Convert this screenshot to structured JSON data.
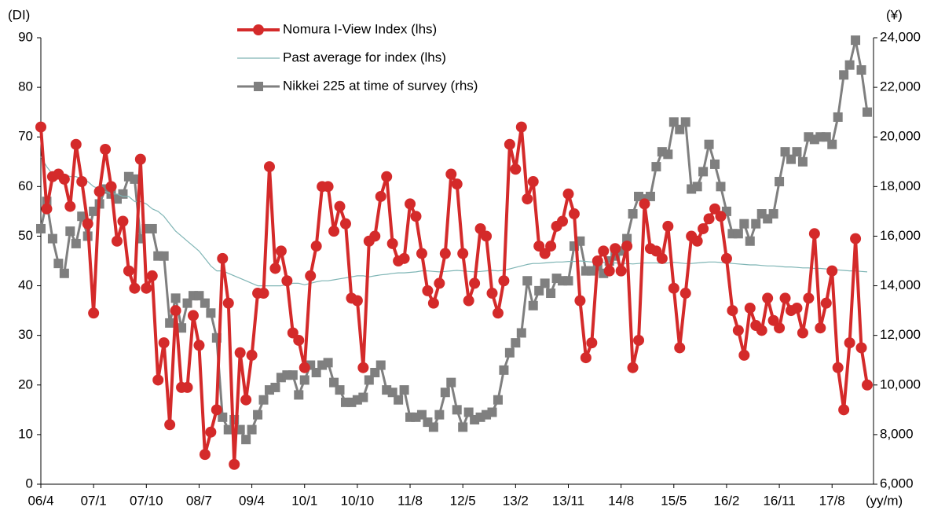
{
  "chart_data": {
    "type": "line",
    "y_label": "(DI)",
    "y2_label": "(¥)",
    "x_label": "(yy/m)",
    "categories": [
      "06/4",
      null,
      null,
      null,
      null,
      null,
      null,
      null,
      null,
      "07/1",
      null,
      null,
      null,
      null,
      null,
      null,
      null,
      null,
      "07/10",
      null,
      null,
      null,
      null,
      null,
      null,
      null,
      null,
      "08/7",
      null,
      null,
      null,
      null,
      null,
      null,
      null,
      null,
      "09/4",
      null,
      null,
      null,
      null,
      null,
      null,
      null,
      null,
      "10/1",
      null,
      null,
      null,
      null,
      null,
      null,
      null,
      null,
      "10/10",
      null,
      null,
      null,
      null,
      null,
      null,
      null,
      null,
      "11/8",
      null,
      null,
      null,
      null,
      null,
      null,
      null,
      null,
      "12/5",
      null,
      null,
      null,
      null,
      null,
      null,
      null,
      null,
      "13/2",
      null,
      null,
      null,
      null,
      null,
      null,
      null,
      null,
      "13/11",
      null,
      null,
      null,
      null,
      null,
      null,
      null,
      null,
      "14/8",
      null,
      null,
      null,
      null,
      null,
      null,
      null,
      null,
      "15/5",
      null,
      null,
      null,
      null,
      null,
      null,
      null,
      null,
      "16/2",
      null,
      null,
      null,
      null,
      null,
      null,
      null,
      null,
      "16/11",
      null,
      null,
      null,
      null,
      null,
      null,
      null,
      null,
      "17/8",
      null,
      null,
      null,
      null,
      null,
      null
    ],
    "ylim": [
      0,
      90
    ],
    "yticks": [
      0,
      10,
      20,
      30,
      40,
      50,
      60,
      70,
      80,
      90
    ],
    "y2lim": [
      6000,
      24000
    ],
    "y2ticks": [
      {
        "value": 6000,
        "label": "6,000"
      },
      {
        "value": 8000,
        "label": "8,000"
      },
      {
        "value": 10000,
        "label": "10,000"
      },
      {
        "value": 12000,
        "label": "12,000"
      },
      {
        "value": 14000,
        "label": "14,000"
      },
      {
        "value": 16000,
        "label": "16,000"
      },
      {
        "value": 18000,
        "label": "18,000"
      },
      {
        "value": 20000,
        "label": "20,000"
      },
      {
        "value": 22000,
        "label": "22,000"
      },
      {
        "value": 24000,
        "label": "24,000"
      }
    ],
    "grid": false,
    "legend": "top",
    "series": [
      {
        "name": "Nomura I-View Index (lhs)",
        "color": "#d42a2a",
        "marker": "circle",
        "width": 4,
        "axis": "y",
        "values": [
          72,
          55.5,
          62,
          62.5,
          61.5,
          56,
          68.5,
          61,
          52.5,
          34.5,
          59,
          67.5,
          60,
          49,
          53,
          43,
          39.5,
          65.5,
          39.5,
          42,
          21,
          28.5,
          12,
          35,
          19.5,
          19.5,
          34,
          28,
          6,
          10.5,
          15,
          45.5,
          36.5,
          4,
          26.5,
          17,
          26,
          38.5,
          38.5,
          64,
          43.5,
          47,
          41,
          30.5,
          29,
          23.5,
          42,
          48,
          60,
          60,
          51,
          56,
          52.5,
          37.5,
          37,
          23.5,
          49,
          50,
          58,
          62,
          48.5,
          45,
          45.5,
          56.5,
          54,
          46.5,
          39,
          36.5,
          40.5,
          46.5,
          62.5,
          60.5,
          46.5,
          37,
          40.5,
          51.5,
          50,
          38.5,
          34.5,
          41,
          68.5,
          63.5,
          72,
          57.5,
          61,
          48,
          46.5,
          48,
          52,
          53,
          58.5,
          54.5,
          37,
          25.5,
          28.5,
          45,
          47,
          43,
          47.5,
          43,
          48,
          23.5,
          29,
          56.5,
          47.5,
          47,
          45.5,
          52,
          39.5,
          27.5,
          38.5,
          50,
          49,
          51.5,
          53.5,
          55.5,
          54,
          45.5,
          35,
          31,
          26,
          35.5,
          32,
          31,
          37.5,
          33,
          31.5,
          37.5,
          35,
          35.5,
          30.5,
          37.5,
          50.5,
          31.5,
          36.5,
          43,
          23.5,
          15,
          28.5,
          49.5,
          27.5,
          20
        ]
      },
      {
        "name": "Past average for index (lhs)",
        "color": "#7fb5b5",
        "marker": null,
        "width": 1.2,
        "axis": "y",
        "values": [
          66,
          64,
          62.5,
          62.5,
          62.5,
          62,
          62,
          61.5,
          61,
          60,
          59.5,
          59,
          58.5,
          58.5,
          58,
          58,
          57,
          57,
          56.5,
          55.5,
          55,
          54,
          52.5,
          51,
          50,
          49,
          48,
          47,
          45.5,
          44,
          43,
          43,
          42.5,
          42,
          41.5,
          41,
          40.5,
          40,
          40,
          40,
          40,
          40,
          40.3,
          40.5,
          40.5,
          40.2,
          40.5,
          40.8,
          41,
          41,
          41.2,
          41.4,
          41.6,
          41.8,
          42,
          42,
          41.8,
          42,
          42.2,
          42.3,
          42.5,
          42.6,
          42.6,
          42.7,
          42.8,
          43,
          43,
          42.9,
          42.8,
          42.9,
          43,
          43.1,
          43,
          42.9,
          42.8,
          42.9,
          43,
          43.1,
          43,
          43.1,
          43.4,
          43.7,
          44,
          44.3,
          44.5,
          44.5,
          44.6,
          44.7,
          44.8,
          44.8,
          44.9,
          44.9,
          45,
          44.9,
          44.8,
          44.7,
          44.7,
          44.6,
          44.6,
          44.5,
          44.5,
          44.4,
          44.5,
          44.6,
          44.6,
          44.6,
          44.5,
          44.6,
          44.7,
          44.6,
          44.5,
          44.5,
          44.6,
          44.7,
          44.8,
          44.8,
          44.7,
          44.6,
          44.5,
          44.4,
          44.3,
          44.2,
          44.2,
          44.1,
          44,
          44,
          43.9,
          43.8,
          43.8,
          43.7,
          43.6,
          43.6,
          43.5,
          43.5,
          43.4,
          43.3,
          43.2,
          43.1,
          43,
          43,
          42.9,
          42.8
        ]
      },
      {
        "name": "Nikkei 225 at time of survey (rhs)",
        "color": "#7f7f7f",
        "marker": "square",
        "width": 3,
        "axis": "y2",
        "values": [
          16300,
          17400,
          15900,
          14900,
          14500,
          16200,
          15700,
          16800,
          16000,
          17000,
          17300,
          17900,
          17700,
          17500,
          17700,
          18400,
          18300,
          15900,
          16300,
          16300,
          15200,
          15200,
          12500,
          13500,
          12300,
          13300,
          13600,
          13600,
          13300,
          12900,
          11900,
          8700,
          8200,
          8600,
          8200,
          7800,
          8200,
          8800,
          9400,
          9800,
          9900,
          10300,
          10400,
          10400,
          9600,
          10200,
          10800,
          10500,
          10800,
          10900,
          10100,
          9800,
          9300,
          9300,
          9400,
          9500,
          10200,
          10500,
          10800,
          9800,
          9700,
          9400,
          9800,
          8700,
          8700,
          8800,
          8500,
          8300,
          8800,
          9700,
          10100,
          9000,
          8300,
          8900,
          8600,
          8700,
          8800,
          8900,
          9400,
          10600,
          11300,
          11700,
          12100,
          14200,
          13200,
          13800,
          14100,
          13700,
          14300,
          14200,
          14200,
          15600,
          15800,
          14600,
          14600,
          14800,
          14500,
          15000,
          15200,
          15400,
          15900,
          16900,
          17600,
          17500,
          17600,
          18800,
          19400,
          19300,
          20600,
          20300,
          20600,
          17900,
          18000,
          18600,
          19700,
          18900,
          18000,
          17000,
          16100,
          16100,
          16500,
          15800,
          16500,
          16900,
          16700,
          16900,
          18200,
          19400,
          19100,
          19400,
          19000,
          20000,
          19900,
          20000,
          20000,
          19700,
          20800,
          22500,
          22900,
          23900,
          22700,
          21000
        ]
      }
    ]
  }
}
